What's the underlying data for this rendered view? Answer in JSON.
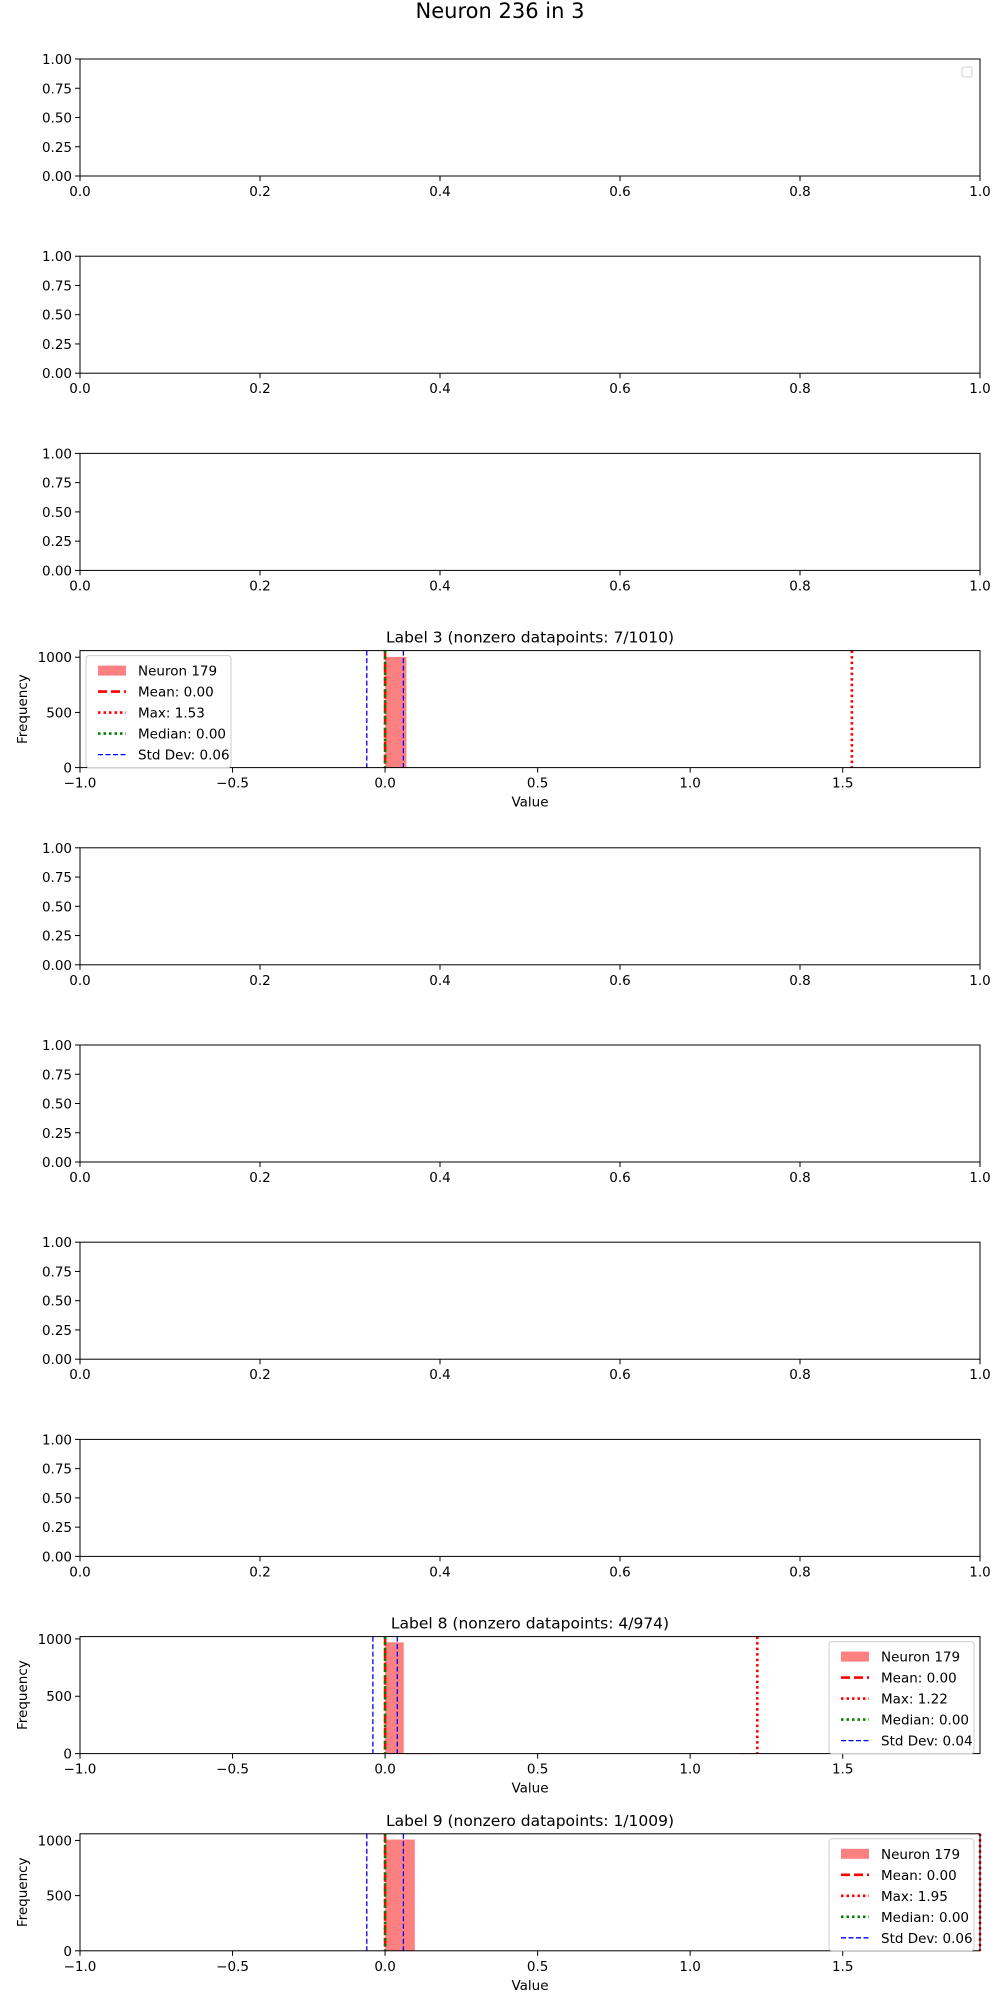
{
  "figure": {
    "title": "Neuron 236 in 3"
  },
  "chart_data": [
    {
      "type": "empty",
      "xlim": [
        0,
        1
      ],
      "ylim": [
        0,
        1
      ],
      "xticks": [
        "0.0",
        "0.2",
        "0.4",
        "0.6",
        "0.8",
        "1.0"
      ],
      "yticks": [
        "0.00",
        "0.25",
        "0.50",
        "0.75",
        "1.00"
      ],
      "legend": "empty-box-top-right"
    },
    {
      "type": "empty",
      "xlim": [
        0,
        1
      ],
      "ylim": [
        0,
        1
      ],
      "xticks": [
        "0.0",
        "0.2",
        "0.4",
        "0.6",
        "0.8",
        "1.0"
      ],
      "yticks": [
        "0.00",
        "0.25",
        "0.50",
        "0.75",
        "1.00"
      ]
    },
    {
      "type": "empty",
      "xlim": [
        0,
        1
      ],
      "ylim": [
        0,
        1
      ],
      "xticks": [
        "0.0",
        "0.2",
        "0.4",
        "0.6",
        "0.8",
        "1.0"
      ],
      "yticks": [
        "0.00",
        "0.25",
        "0.50",
        "0.75",
        "1.00"
      ]
    },
    {
      "type": "histogram",
      "title": "Label 3 (nonzero datapoints: 7/1010)",
      "xlabel": "Value",
      "ylabel": "Frequency",
      "xlim": [
        -1.0,
        1.95
      ],
      "ylim": [
        0,
        1060
      ],
      "xticks": [
        "−1.0",
        "−0.5",
        "0.0",
        "0.5",
        "1.0",
        "1.5"
      ],
      "yticks": [
        "0",
        "500",
        "1000"
      ],
      "bins": [
        {
          "x0": 0.0,
          "x1": 0.07,
          "count": 1003
        }
      ],
      "series_name": "Neuron 179",
      "mean": 0.0,
      "max": 1.53,
      "median": 0.0,
      "std": 0.06,
      "legend": [
        {
          "label": "Neuron 179",
          "kind": "patch"
        },
        {
          "label": "Mean: 0.00",
          "kind": "dash"
        },
        {
          "label": "Max: 1.53",
          "kind": "dot"
        },
        {
          "label": "Median: 0.00",
          "kind": "gdot"
        },
        {
          "label": "Std Dev: 0.06",
          "kind": "bdash"
        }
      ],
      "legend_position": "upper-left"
    },
    {
      "type": "empty",
      "xlim": [
        0,
        1
      ],
      "ylim": [
        0,
        1
      ],
      "xticks": [
        "0.0",
        "0.2",
        "0.4",
        "0.6",
        "0.8",
        "1.0"
      ],
      "yticks": [
        "0.00",
        "0.25",
        "0.50",
        "0.75",
        "1.00"
      ]
    },
    {
      "type": "empty",
      "xlim": [
        0,
        1
      ],
      "ylim": [
        0,
        1
      ],
      "xticks": [
        "0.0",
        "0.2",
        "0.4",
        "0.6",
        "0.8",
        "1.0"
      ],
      "yticks": [
        "0.00",
        "0.25",
        "0.50",
        "0.75",
        "1.00"
      ]
    },
    {
      "type": "empty",
      "xlim": [
        0,
        1
      ],
      "ylim": [
        0,
        1
      ],
      "xticks": [
        "0.0",
        "0.2",
        "0.4",
        "0.6",
        "0.8",
        "1.0"
      ],
      "yticks": [
        "0.00",
        "0.25",
        "0.50",
        "0.75",
        "1.00"
      ]
    },
    {
      "type": "empty",
      "xlim": [
        0,
        1
      ],
      "ylim": [
        0,
        1
      ],
      "xticks": [
        "0.0",
        "0.2",
        "0.4",
        "0.6",
        "0.8",
        "1.0"
      ],
      "yticks": [
        "0.00",
        "0.25",
        "0.50",
        "0.75",
        "1.00"
      ]
    },
    {
      "type": "histogram",
      "title": "Label 8 (nonzero datapoints: 4/974)",
      "xlabel": "Value",
      "ylabel": "Frequency",
      "xlim": [
        -1.0,
        1.95
      ],
      "ylim": [
        0,
        1020
      ],
      "xticks": [
        "−1.0",
        "−0.5",
        "0.0",
        "0.5",
        "1.0",
        "1.5"
      ],
      "yticks": [
        "0",
        "500",
        "1000"
      ],
      "bins": [
        {
          "x0": 0.0,
          "x1": 0.061,
          "count": 970
        },
        {
          "x0": 0.061,
          "x1": 0.183,
          "count": 2
        },
        {
          "x0": 1.159,
          "x1": 1.22,
          "count": 2
        }
      ],
      "series_name": "Neuron 179",
      "mean": 0.0,
      "max": 1.22,
      "median": 0.0,
      "std": 0.04,
      "legend": [
        {
          "label": "Neuron 179",
          "kind": "patch"
        },
        {
          "label": "Mean: 0.00",
          "kind": "dash"
        },
        {
          "label": "Max: 1.22",
          "kind": "dot"
        },
        {
          "label": "Median: 0.00",
          "kind": "gdot"
        },
        {
          "label": "Std Dev: 0.04",
          "kind": "bdash"
        }
      ],
      "legend_position": "upper-right"
    },
    {
      "type": "histogram",
      "title": "Label 9 (nonzero datapoints: 1/1009)",
      "xlabel": "Value",
      "ylabel": "Frequency",
      "xlim": [
        -1.0,
        1.95
      ],
      "ylim": [
        0,
        1060
      ],
      "xticks": [
        "−1.0",
        "−0.5",
        "0.0",
        "0.5",
        "1.0",
        "1.5"
      ],
      "yticks": [
        "0",
        "500",
        "1000"
      ],
      "bins": [
        {
          "x0": 0.0,
          "x1": 0.0975,
          "count": 1008
        }
      ],
      "series_name": "Neuron 179",
      "mean": 0.0,
      "max": 1.95,
      "median": 0.0,
      "std": 0.06,
      "legend": [
        {
          "label": "Neuron 179",
          "kind": "patch"
        },
        {
          "label": "Mean: 0.00",
          "kind": "dash"
        },
        {
          "label": "Max: 1.95",
          "kind": "dot"
        },
        {
          "label": "Median: 0.00",
          "kind": "gdot"
        },
        {
          "label": "Std Dev: 0.06",
          "kind": "bdash"
        }
      ],
      "legend_position": "upper-right"
    }
  ]
}
